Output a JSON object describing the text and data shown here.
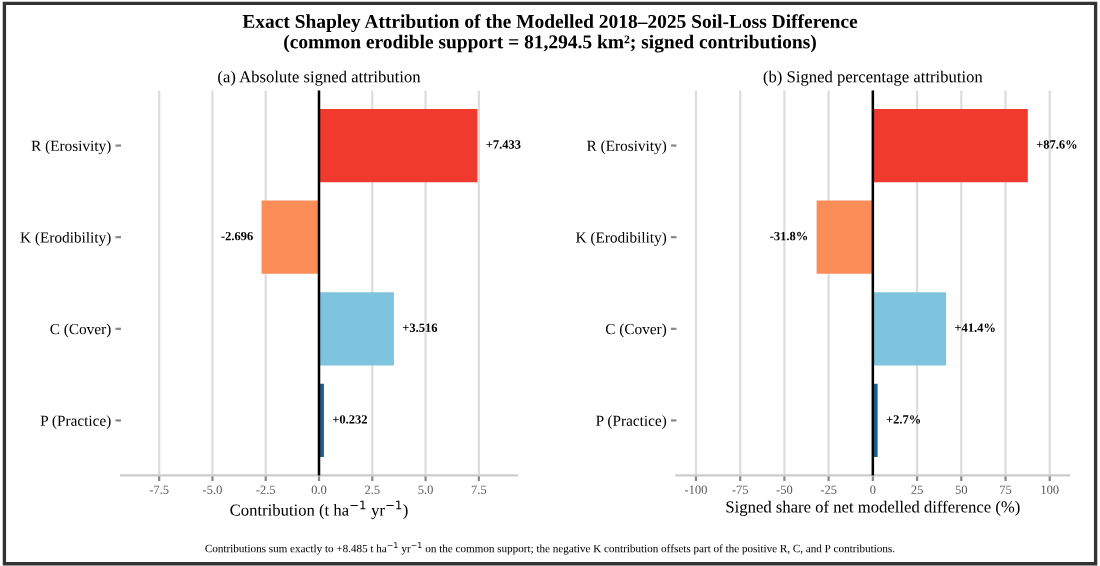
{
  "chart_data": [
    {
      "type": "bar",
      "orientation": "horizontal",
      "title": "Exact Shapley Attribution of the Modelled 2018–2025 Soil-Loss Difference\n(common erodible support = 81,294.5 km²; signed contributions)",
      "subtitle": "(a) Absolute signed attribution",
      "xlabel": "Contribution (t ha$^{−1}$ yr$^{−1}$)",
      "categories": [
        "R (Erosivity)",
        "K (Erodibility)",
        "C (Cover)",
        "P (Practice)"
      ],
      "values": [
        7.433,
        -2.696,
        3.516,
        0.232
      ],
      "colors": [
        "#f03a2e",
        "#fc8d59",
        "#7fc4de",
        "#1f5f8f"
      ],
      "value_labels": [
        "+7.433",
        "-2.696",
        "+3.516",
        "+0.232"
      ],
      "xlim": [
        -9.29,
        9.29
      ],
      "xticks": [
        -7.5,
        {
          "value": -5,
          "label": "-5.0"
        },
        -2.5,
        {
          "value": 0,
          "label": "0.0"
        },
        2.5,
        {
          "value": 5,
          "label": "5.0"
        },
        7.5
      ],
      "grid": "x",
      "ref_lines": [
        {
          "axis": "x",
          "value": 0,
          "color": "#000000"
        }
      ],
      "annotations": [
        "Contributions sum exactly to +8.485 t ha$^{−1}$ yr$^{−1}$ on the common support; the negative K contribution offsets part of the positive R, C, and P contributions."
      ]
    },
    {
      "type": "bar",
      "orientation": "horizontal",
      "subtitle": "(b) Signed percentage attribution",
      "xlabel": "Signed share of net modelled difference (%)",
      "categories": [
        "R (Erosivity)",
        "K (Erodibility)",
        "C (Cover)",
        "P (Practice)"
      ],
      "values": [
        87.6,
        -31.8,
        41.4,
        2.7
      ],
      "colors": [
        "#f03a2e",
        "#fc8d59",
        "#7fc4de",
        "#1f5f8f"
      ],
      "value_labels": [
        "+87.6%",
        "-31.8%",
        "+41.4%",
        "+2.7%"
      ],
      "xlim": [
        -111,
        111
      ],
      "xticks": [
        -100,
        -75,
        -50,
        -25,
        0,
        25,
        50,
        75,
        100
      ],
      "grid": "x",
      "ref_lines": [
        {
          "axis": "x",
          "value": 0,
          "color": "#000000"
        }
      ]
    }
  ]
}
